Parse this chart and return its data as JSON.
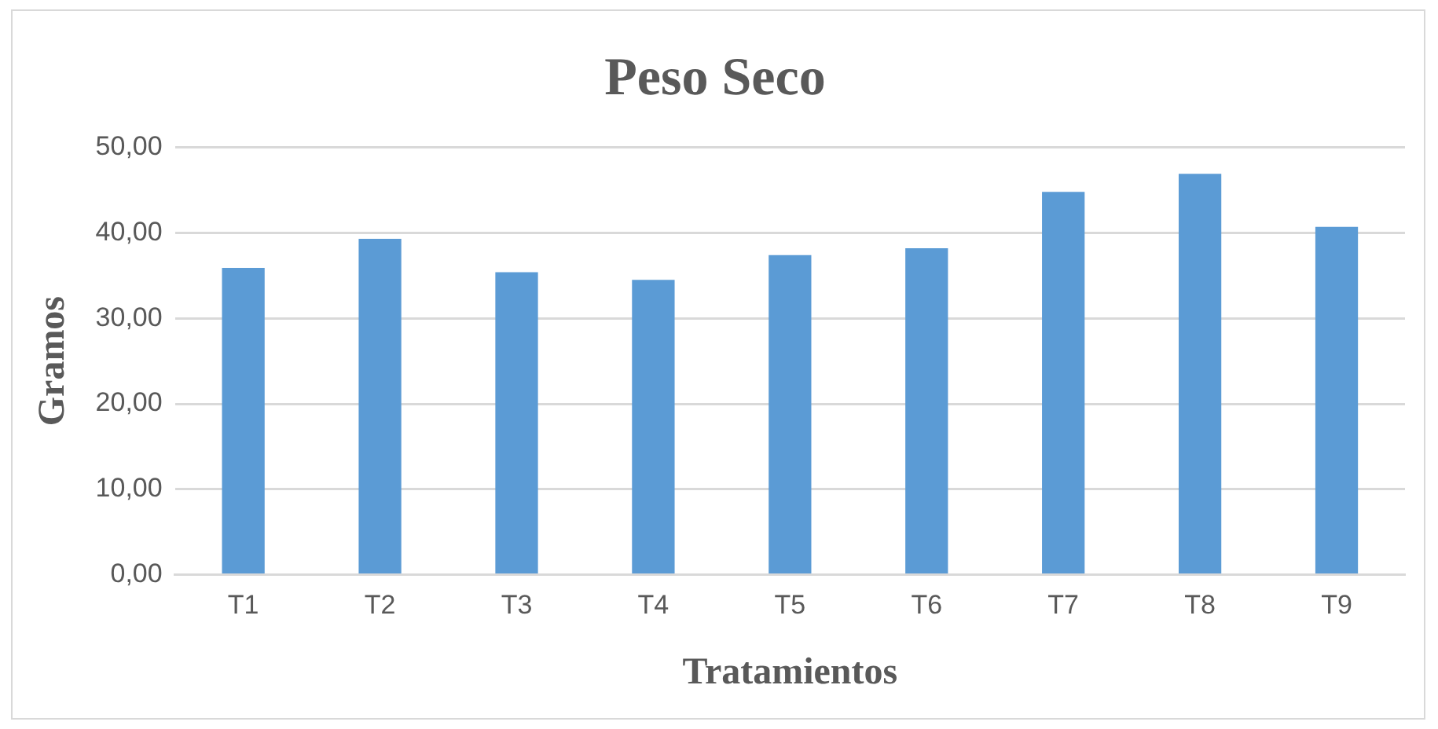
{
  "chart_data": {
    "type": "bar",
    "title": "Peso Seco",
    "xlabel": "Tratamientos",
    "ylabel": "Gramos",
    "categories": [
      "T1",
      "T2",
      "T3",
      "T4",
      "T5",
      "T6",
      "T7",
      "T8",
      "T9"
    ],
    "values": [
      35.9,
      39.3,
      35.4,
      34.5,
      37.4,
      38.2,
      44.8,
      46.9,
      40.7
    ],
    "color": "#5b9bd5",
    "ylim": [
      0,
      50
    ],
    "yticks": [
      {
        "value": 0,
        "label": "0,00"
      },
      {
        "value": 10,
        "label": "10,00"
      },
      {
        "value": 20,
        "label": "20,00"
      },
      {
        "value": 30,
        "label": "30,00"
      },
      {
        "value": 40,
        "label": "40,00"
      },
      {
        "value": 50,
        "label": "50,00"
      }
    ],
    "grid": "y",
    "legend": false
  }
}
